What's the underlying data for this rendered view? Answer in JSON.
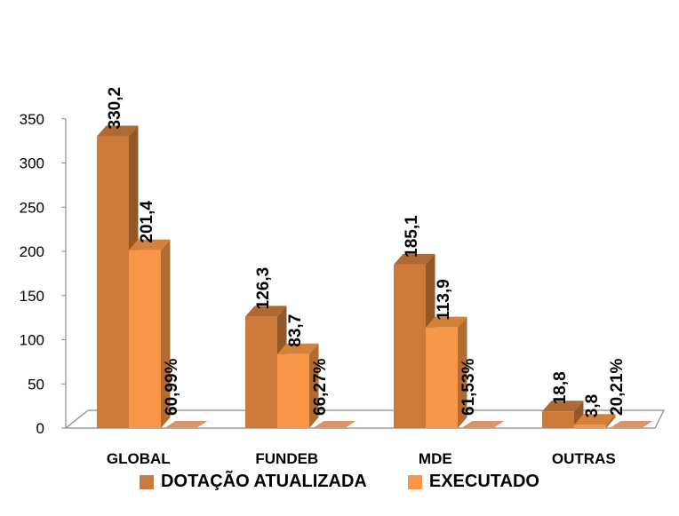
{
  "chart_data": {
    "type": "bar",
    "categories": [
      "GLOBAL",
      "FUNDEB",
      "MDE",
      "OUTRAS"
    ],
    "series": [
      {
        "name": "DOTAÇÃO ATUALIZADA",
        "values": [
          330.2,
          126.3,
          185.1,
          18.8
        ],
        "labels": [
          "330,2",
          "126,3",
          "185,1",
          "18,8"
        ],
        "color": "#CC7A3A"
      },
      {
        "name": "EXECUTADO",
        "values": [
          201.4,
          83.7,
          113.9,
          3.8
        ],
        "labels": [
          "201,4",
          "83,7",
          "113,9",
          "3,8"
        ],
        "color": "#F79646"
      },
      {
        "name": "",
        "values": [
          0,
          0,
          0,
          0
        ],
        "labels": [
          "60,99%",
          "66,27%",
          "61,53%",
          "20,21%"
        ],
        "color": "#D9946A"
      }
    ],
    "ylim": [
      0,
      350
    ],
    "yticks": [
      "0",
      "50",
      "100",
      "150",
      "200",
      "250",
      "300",
      "350"
    ],
    "gridlines": false,
    "legend_position": "bottom",
    "three_d": true
  }
}
